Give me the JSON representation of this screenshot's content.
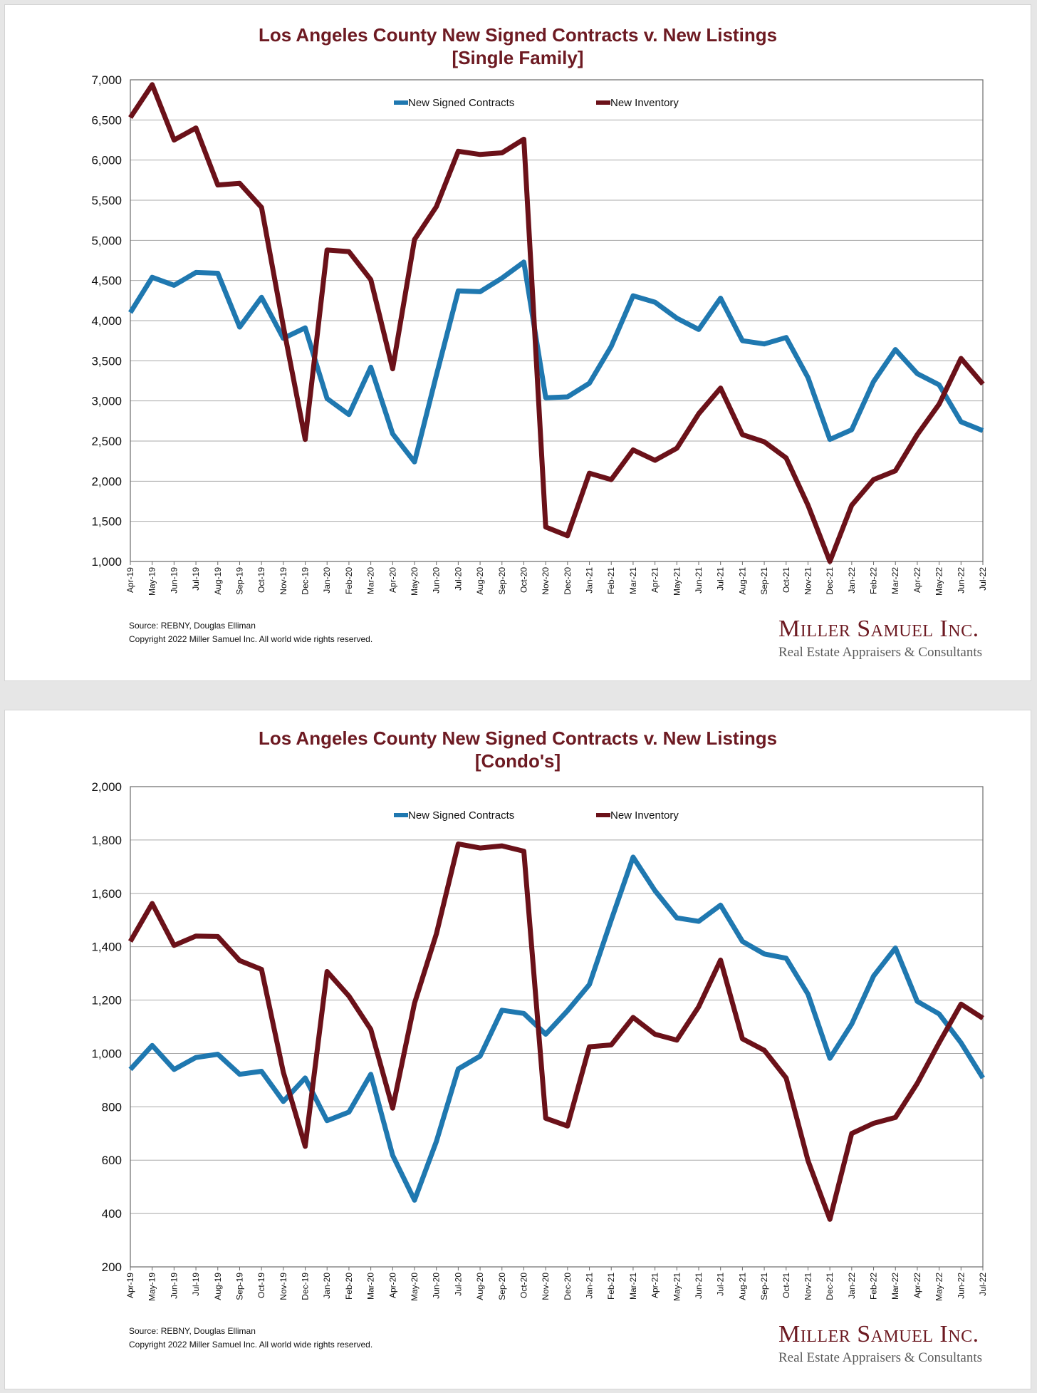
{
  "source_text": "Source: REBNY, Douglas Elliman",
  "copyright_text": "Copyright 2022 Miller Samuel Inc.  All world wide rights reserved.",
  "logo": {
    "name": "Miller Samuel Inc.",
    "tagline": "Real Estate Appraisers & Consultants"
  },
  "colors": {
    "contracts": "#1f78b0",
    "inventory": "#6b1119",
    "title": "#6d1a22"
  },
  "chart_data": [
    {
      "type": "line",
      "title": "Los Angeles County New Signed Contracts v. New Listings",
      "subtitle": "[Single Family]",
      "categories": [
        "Apr-19",
        "May-19",
        "Jun-19",
        "Jul-19",
        "Aug-19",
        "Sep-19",
        "Oct-19",
        "Nov-19",
        "Dec-19",
        "Jan-20",
        "Feb-20",
        "Mar-20",
        "Apr-20",
        "May-20",
        "Jun-20",
        "Jul-20",
        "Aug-20",
        "Sep-20",
        "Oct-20",
        "Nov-20",
        "Dec-20",
        "Jan-21",
        "Feb-21",
        "Mar-21",
        "Apr-21",
        "May-21",
        "Jun-21",
        "Jul-21",
        "Aug-21",
        "Sep-21",
        "Oct-21",
        "Nov-21",
        "Dec-21",
        "Jan-22",
        "Feb-22",
        "Mar-22",
        "Apr-22",
        "May-22",
        "Jun-22",
        "Jul-22"
      ],
      "ylim": [
        1000,
        7000
      ],
      "yticks": [
        1000,
        1500,
        2000,
        2500,
        3000,
        3500,
        4000,
        4500,
        5000,
        5500,
        6000,
        6500,
        7000
      ],
      "ytick_labels": [
        "1,000",
        "1,500",
        "2,000",
        "2,500",
        "3,000",
        "3,500",
        "4,000",
        "4,500",
        "5,000",
        "5,500",
        "6,000",
        "6,500",
        "7,000"
      ],
      "grid": true,
      "series": [
        {
          "name": "New Signed Contracts",
          "color": "#1f78b0",
          "values": [
            4100,
            4540,
            4440,
            4600,
            4590,
            3920,
            4290,
            3780,
            3910,
            3030,
            2830,
            3420,
            2590,
            2240,
            3320,
            4370,
            4360,
            4530,
            4730,
            3040,
            3050,
            3220,
            3680,
            4310,
            4230,
            4030,
            3890,
            4280,
            3750,
            3710,
            3790,
            3290,
            2520,
            2640,
            3240,
            3640,
            3340,
            3200,
            2740,
            2630
          ]
        },
        {
          "name": "New Inventory",
          "color": "#6b1119",
          "values": [
            6530,
            6940,
            6250,
            6400,
            5690,
            5710,
            5410,
            3930,
            2520,
            4880,
            4860,
            4510,
            3400,
            5010,
            5420,
            6110,
            6070,
            6090,
            6260,
            1430,
            1320,
            2100,
            2020,
            2390,
            2260,
            2410,
            2840,
            3160,
            2580,
            2490,
            2290,
            1700,
            1000,
            1700,
            2020,
            2130,
            2580,
            2960,
            3530,
            3210
          ]
        }
      ]
    },
    {
      "type": "line",
      "title": "Los Angeles County New Signed Contracts v. New Listings",
      "subtitle": "[Condo's]",
      "categories": [
        "Apr-19",
        "May-19",
        "Jun-19",
        "Jul-19",
        "Aug-19",
        "Sep-19",
        "Oct-19",
        "Nov-19",
        "Dec-19",
        "Jan-20",
        "Feb-20",
        "Mar-20",
        "Apr-20",
        "May-20",
        "Jun-20",
        "Jul-20",
        "Aug-20",
        "Sep-20",
        "Oct-20",
        "Nov-20",
        "Dec-20",
        "Jan-21",
        "Feb-21",
        "Mar-21",
        "Apr-21",
        "May-21",
        "Jun-21",
        "Jul-21",
        "Aug-21",
        "Sep-21",
        "Oct-21",
        "Nov-21",
        "Dec-21",
        "Jan-22",
        "Feb-22",
        "Mar-22",
        "Apr-22",
        "May-22",
        "Jun-22",
        "Jul-22"
      ],
      "ylim": [
        200,
        2000
      ],
      "yticks": [
        200,
        400,
        600,
        800,
        1000,
        1200,
        1400,
        1600,
        1800,
        2000
      ],
      "ytick_labels": [
        "200",
        "400",
        "600",
        "800",
        "1,000",
        "1,200",
        "1,400",
        "1,600",
        "1,800",
        "2,000"
      ],
      "grid": true,
      "series": [
        {
          "name": "New Signed Contracts",
          "color": "#1f78b0",
          "values": [
            940,
            1030,
            940,
            985,
            997,
            922,
            933,
            820,
            908,
            748,
            780,
            922,
            618,
            450,
            670,
            942,
            990,
            1162,
            1150,
            1072,
            1160,
            1258,
            1500,
            1736,
            1610,
            1508,
            1495,
            1556,
            1420,
            1373,
            1357,
            1222,
            982,
            1110,
            1290,
            1395,
            1195,
            1148,
            1040,
            908
          ]
        },
        {
          "name": "New Inventory",
          "color": "#6b1119",
          "values": [
            1420,
            1562,
            1405,
            1440,
            1438,
            1348,
            1315,
            930,
            652,
            1307,
            1215,
            1090,
            795,
            1188,
            1448,
            1785,
            1770,
            1778,
            1758,
            757,
            728,
            1025,
            1032,
            1135,
            1072,
            1050,
            1175,
            1350,
            1055,
            1012,
            908,
            598,
            378,
            700,
            738,
            760,
            888,
            1040,
            1185,
            1132
          ]
        }
      ]
    }
  ]
}
